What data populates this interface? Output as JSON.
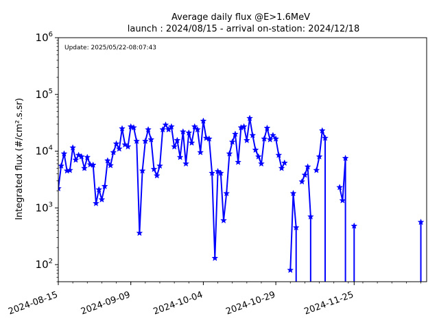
{
  "chart_data": {
    "type": "line",
    "title": "Average daily flux @E>1.6MeV",
    "subtitle": "launch : 2024/08/15 - arrival on-station: 2024/12/18",
    "update_text": "Update: 2025/05/22-08:07:43",
    "ylabel": "Integrated flux (#/cm².s.sr)",
    "yscale": "log",
    "ylim": [
      50,
      1000000
    ],
    "xlim": [
      "2024-08-15",
      "2024-12-20"
    ],
    "x_ticks": [
      "2024-08-15",
      "2024-09-09",
      "2024-10-04",
      "2024-10-29",
      "2024-11-25"
    ],
    "y_ticks": [
      {
        "value": 100,
        "base": "10",
        "exp": "2"
      },
      {
        "value": 1000,
        "base": "10",
        "exp": "3"
      },
      {
        "value": 10000,
        "base": "10",
        "exp": "4"
      },
      {
        "value": 100000,
        "base": "10",
        "exp": "5"
      },
      {
        "value": 1000000,
        "base": "10",
        "exp": "6"
      }
    ],
    "grid": false,
    "color": "#0000ff",
    "marker": "star",
    "segments": [
      {
        "x": [
          "2024-08-15",
          "2024-08-16",
          "2024-08-17",
          "2024-08-18",
          "2024-08-19",
          "2024-08-20",
          "2024-08-21",
          "2024-08-22",
          "2024-08-23",
          "2024-08-24",
          "2024-08-25",
          "2024-08-26",
          "2024-08-27",
          "2024-08-28",
          "2024-08-29",
          "2024-08-30",
          "2024-08-31",
          "2024-09-01",
          "2024-09-02",
          "2024-09-03",
          "2024-09-04",
          "2024-09-05",
          "2024-09-06",
          "2024-09-07",
          "2024-09-08",
          "2024-09-09",
          "2024-09-10",
          "2024-09-11",
          "2024-09-12",
          "2024-09-13",
          "2024-09-14",
          "2024-09-15",
          "2024-09-16",
          "2024-09-17",
          "2024-09-18",
          "2024-09-19",
          "2024-09-20",
          "2024-09-21",
          "2024-09-22",
          "2024-09-23",
          "2024-09-24",
          "2024-09-25",
          "2024-09-26",
          "2024-09-27",
          "2024-09-28",
          "2024-09-29",
          "2024-09-30",
          "2024-10-01",
          "2024-10-02",
          "2024-10-03",
          "2024-10-04",
          "2024-10-05",
          "2024-10-06",
          "2024-10-07",
          "2024-10-08",
          "2024-10-09",
          "2024-10-10",
          "2024-10-11",
          "2024-10-12",
          "2024-10-13",
          "2024-10-14",
          "2024-10-15",
          "2024-10-16",
          "2024-10-17",
          "2024-10-18",
          "2024-10-19",
          "2024-10-20",
          "2024-10-21",
          "2024-10-22",
          "2024-10-23",
          "2024-10-24",
          "2024-10-25",
          "2024-10-26",
          "2024-10-27",
          "2024-10-28",
          "2024-10-29",
          "2024-10-30",
          "2024-10-31",
          "2024-11-01"
        ],
        "y": [
          2200,
          5500,
          9000,
          4500,
          4600,
          11500,
          7000,
          8500,
          8000,
          5000,
          7800,
          5800,
          5700,
          1200,
          2100,
          1400,
          2400,
          6800,
          5600,
          9500,
          13500,
          11000,
          25000,
          13000,
          12000,
          27000,
          26000,
          15000,
          360,
          4500,
          15000,
          24000,
          16000,
          4800,
          3700,
          5500,
          24000,
          29000,
          24000,
          27000,
          12000,
          15500,
          7800,
          22000,
          6000,
          21000,
          14000,
          27000,
          24000,
          9500,
          34000,
          17000,
          16500,
          4100,
          130,
          4400,
          4100,
          600,
          1800,
          9000,
          14500,
          20000,
          6400,
          26000,
          27000,
          15500,
          38000,
          19000,
          10500,
          8000,
          6000,
          16500,
          25500,
          16000,
          19000,
          16500,
          8500,
          5000,
          6200
        ]
      },
      {
        "x": [
          "2024-11-03",
          "2024-11-04",
          "2024-11-05"
        ],
        "y": [
          80,
          1800,
          450
        ]
      },
      {
        "x": [
          "2024-11-07",
          "2024-11-08",
          "2024-11-09",
          "2024-11-10"
        ],
        "y": [
          2900,
          3800,
          5300,
          700
        ]
      },
      {
        "x": [
          "2024-11-12",
          "2024-11-13",
          "2024-11-14",
          "2024-11-15"
        ],
        "y": [
          4600,
          8000,
          23000,
          17000
        ]
      },
      {
        "x": [
          "2024-11-20",
          "2024-11-21",
          "2024-11-22"
        ],
        "y": [
          2300,
          1350,
          7500
        ]
      },
      {
        "x": [
          "2024-11-25"
        ],
        "y": [
          480
        ]
      },
      {
        "x": [
          "2024-12-18"
        ],
        "y": [
          560
        ]
      }
    ],
    "drops_to_zero": [
      "2024-11-06",
      "2024-11-11",
      "2024-11-16",
      "2024-11-19",
      "2024-11-23",
      "2024-11-24",
      "2024-12-17"
    ]
  }
}
